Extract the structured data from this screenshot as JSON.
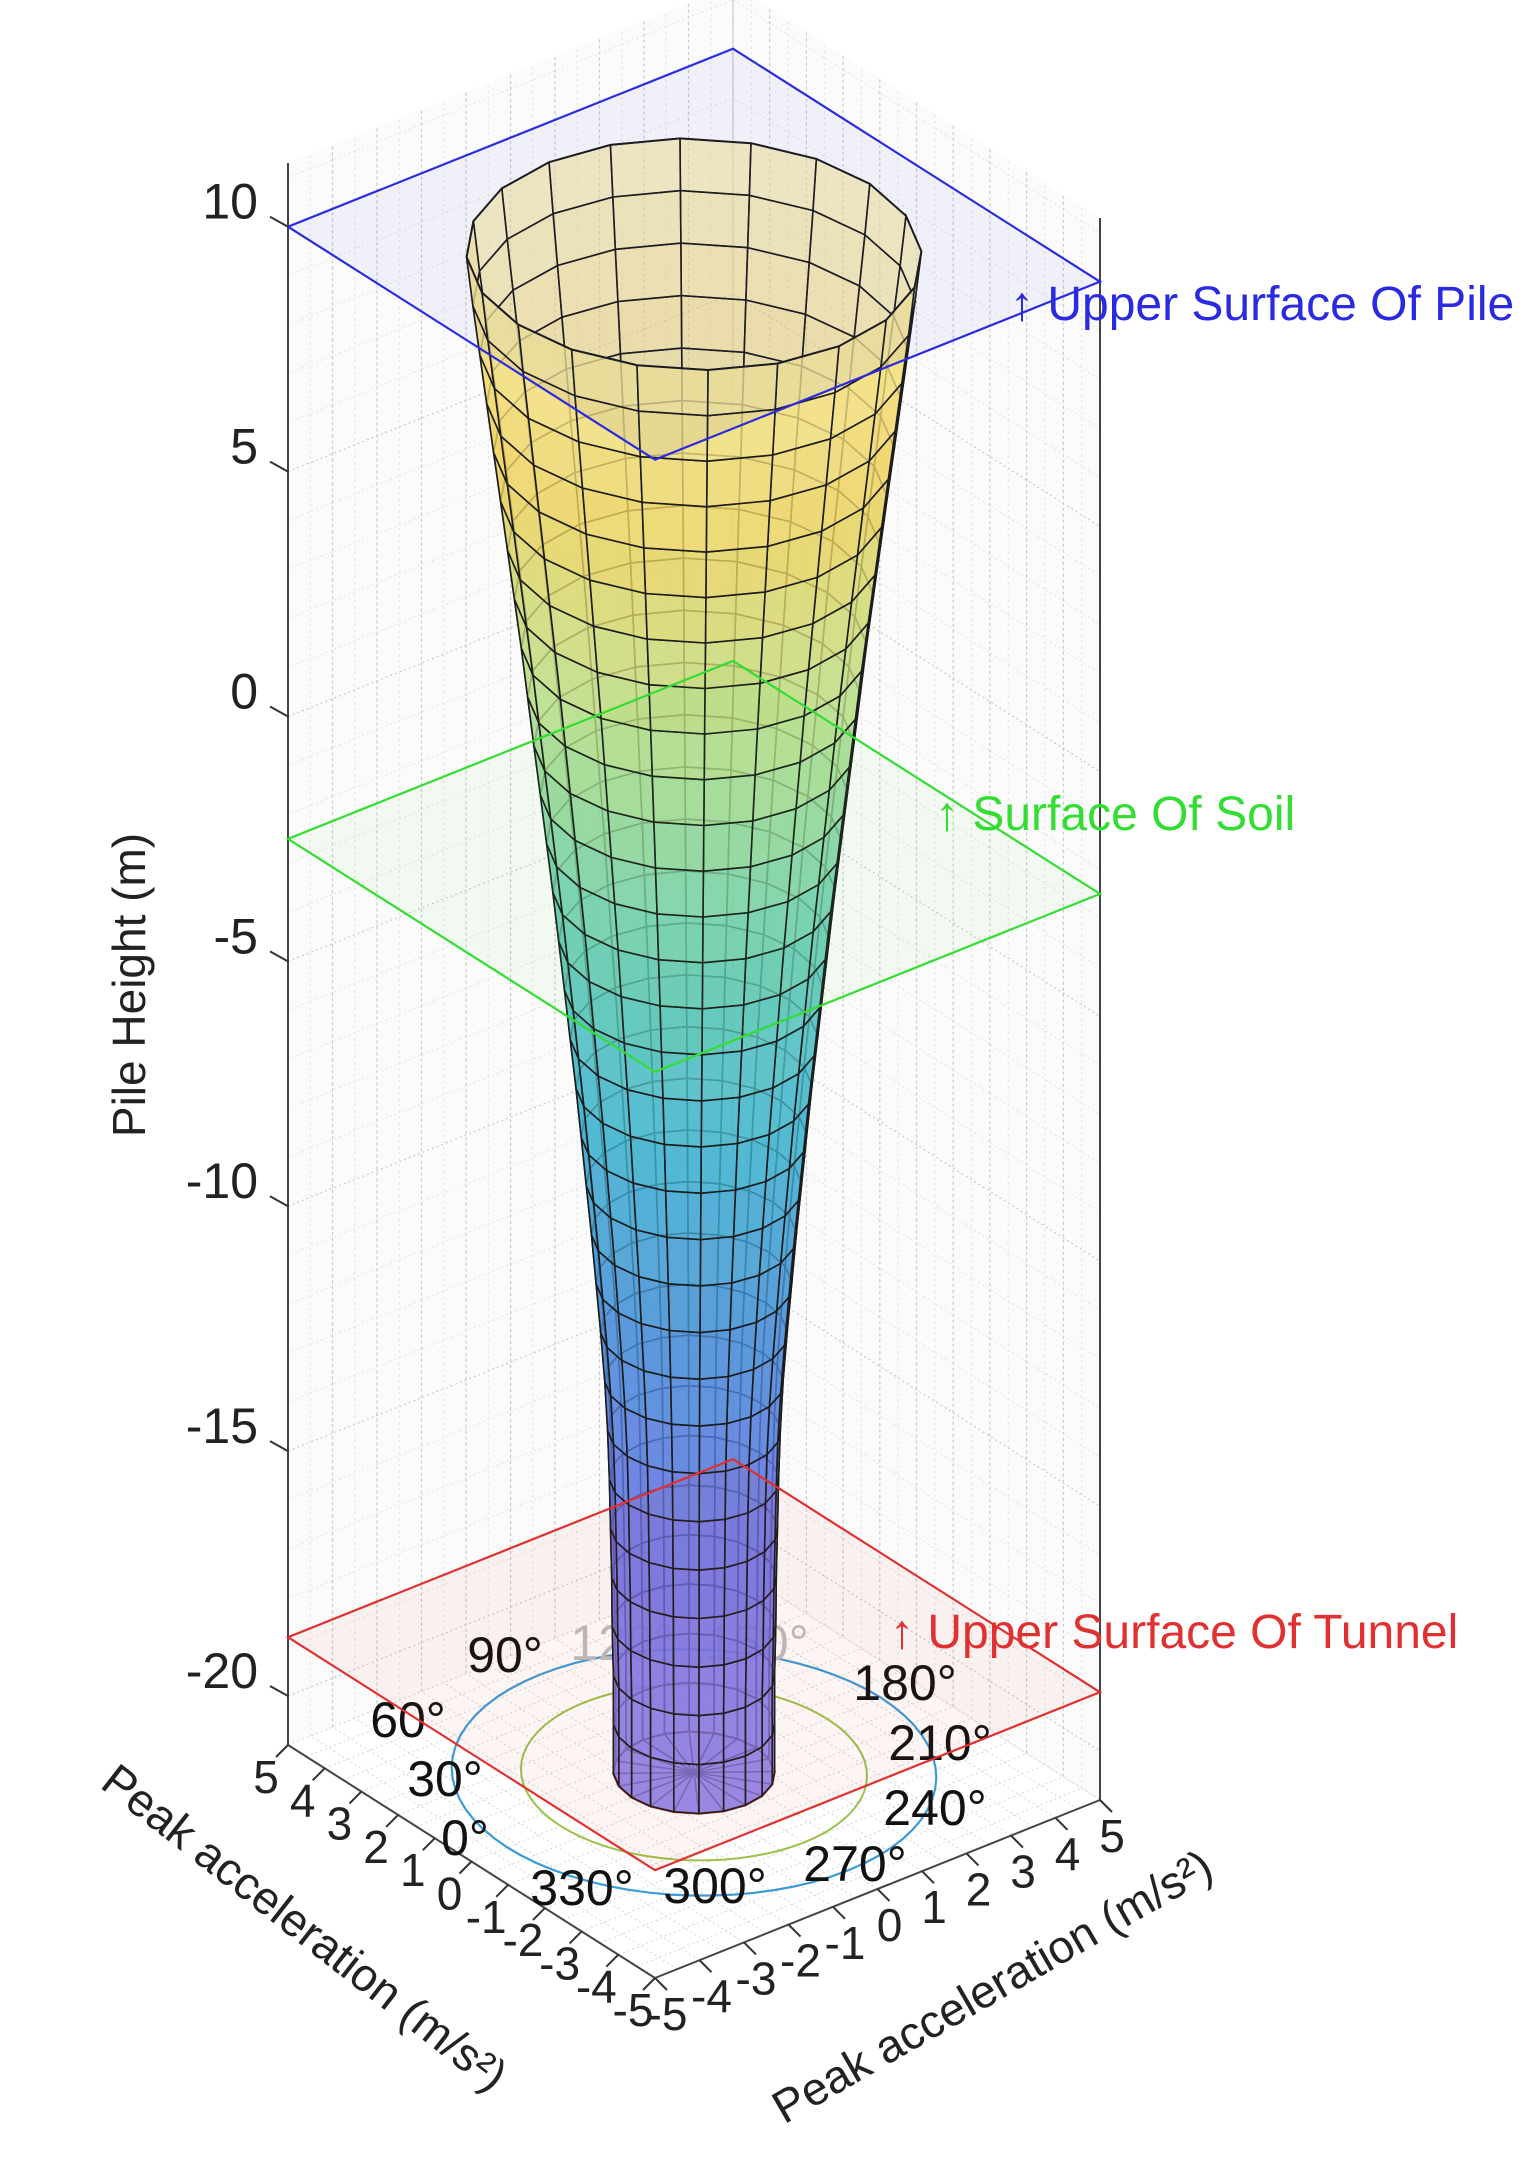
{
  "chart_data": {
    "type": "surface",
    "zlabel": "Pile Height (m)",
    "xlabel": "Peak acceleration (m/s²)",
    "ylabel": "Peak acceleration (m/s²)",
    "zlim": [
      -21,
      11
    ],
    "xlim": [
      -5,
      5
    ],
    "ylim": [
      -5,
      5
    ],
    "grid": true,
    "z_ticks": [
      "10",
      "5",
      "0",
      "-5",
      "-10",
      "-15",
      "-20"
    ],
    "z_tick_values": [
      10,
      5,
      0,
      -5,
      -10,
      -15,
      -20
    ],
    "x_ticks": [
      "5",
      "4",
      "3",
      "2",
      "1",
      "0",
      "-1",
      "-2",
      "-3",
      "-4",
      "-5"
    ],
    "y_ticks": [
      "-5",
      "-4",
      "-3",
      "-2",
      "-1",
      "0",
      "1",
      "2",
      "3",
      "4",
      "5"
    ],
    "angle_labels": [
      "0°",
      "30°",
      "60°",
      "90°",
      "120°",
      "150°",
      "180°",
      "210°",
      "240°",
      "270°",
      "300°",
      "330°"
    ],
    "surface_profile": {
      "height": [
        -21,
        -20,
        -19,
        -18,
        -17,
        -16,
        -15,
        -14,
        -13,
        -12,
        -11,
        -10,
        -9,
        -8,
        -7,
        -6,
        -5,
        -4,
        -3,
        -2,
        -1,
        0,
        1,
        2,
        3,
        4,
        5,
        6,
        7,
        8,
        9,
        10
      ],
      "radius": [
        1.4,
        1.4,
        1.4,
        1.42,
        1.43,
        1.45,
        1.47,
        1.5,
        1.55,
        1.62,
        1.7,
        1.78,
        1.87,
        1.96,
        2.05,
        2.15,
        2.25,
        2.35,
        2.45,
        2.56,
        2.67,
        2.78,
        2.89,
        3.0,
        3.12,
        3.24,
        3.36,
        3.48,
        3.6,
        3.72,
        3.84,
        3.95
      ]
    },
    "planes": [
      {
        "name": "Upper Surface Of Pile",
        "z": 10,
        "color": "#2a2ae0",
        "label": "↑ Upper Surface Of Pile"
      },
      {
        "name": "Surface Of Soil",
        "z": -2.5,
        "color": "#33dd33",
        "label": "↑ Surface Of Soil"
      },
      {
        "name": "Upper Surface Of Tunnel",
        "z": -18.8,
        "color": "#e03030",
        "label": "↑ Upper Surface Of Tunnel"
      }
    ],
    "colormap": [
      "#f6eca0",
      "#f0d260",
      "#bfe08a",
      "#6fcfb0",
      "#3fb6cf",
      "#4a8fd8",
      "#6a6ee6",
      "#8c82ea"
    ]
  }
}
